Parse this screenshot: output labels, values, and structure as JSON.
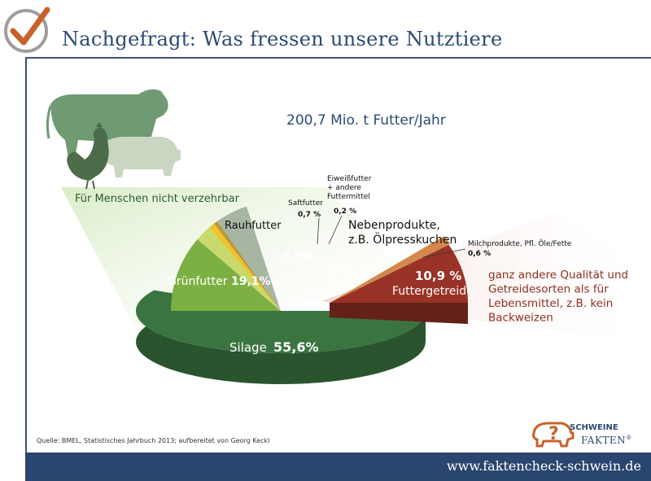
{
  "header": {
    "title": "Nachgefragt: Was fressen unsere Nutztiere"
  },
  "chart_data": {
    "type": "pie",
    "title": "200,7 Mio. t Futter/Jahr",
    "region_label": "Für Menschen nicht verzehrbar",
    "slices": [
      {
        "label": "Silage",
        "display": "55,6%",
        "value": 55.6,
        "color": "#3a7440"
      },
      {
        "label": "Grünfutter",
        "display": "19,1%",
        "value": 19.1,
        "color": "#7cb043"
      },
      {
        "label": "Rauhfutter",
        "display": "4,1%",
        "value": 4.1,
        "color": "#c8da6c"
      },
      {
        "label": "Saftfutter",
        "display": "0,7 %",
        "value": 0.7,
        "color": "#f1c229"
      },
      {
        "label_lines": [
          "Eiweißfutter",
          "+ andere",
          "Futtermittel"
        ],
        "display": "0,2 %",
        "value": 0.2,
        "color": "#b19a3a"
      },
      {
        "label_lines": [
          "Nebenprodukte,",
          "z.B. Ölpresskuchen"
        ],
        "display": "8 %",
        "value": 8,
        "color": "#a7b6a3"
      },
      {
        "label": "Milchprodukte, Pfl. Öle/Fette",
        "display": "0,6 %",
        "value": 0.6,
        "color": "#d3884a"
      },
      {
        "label": "Futtergetreide",
        "display": "10,9 %",
        "value": 10.9,
        "color": "#9a3327"
      }
    ],
    "note_lines": [
      "ganz andere Qualität und",
      "Getreidesorten als für",
      "Lebensmittel, z.B. kein",
      "Backweizen"
    ],
    "colors": {
      "note": "#8f2f1f",
      "label_dark": "#1f3b1f",
      "label_light": "#ffffff",
      "accent": "#2c4a74"
    }
  },
  "footer": {
    "source": "Quelle: BMEL, Statistisches Jahrbuch 2013;  aufbereitet von Georg Keckl",
    "url": "www.faktencheck-schwein.de",
    "brand_top": "SCHWEINE",
    "brand_bottom": "FAKTEN",
    "brand_mark": "®"
  },
  "icons": [
    "check-icon",
    "cow-icon",
    "chicken-icon",
    "pig-icon",
    "pig-logo-icon"
  ]
}
